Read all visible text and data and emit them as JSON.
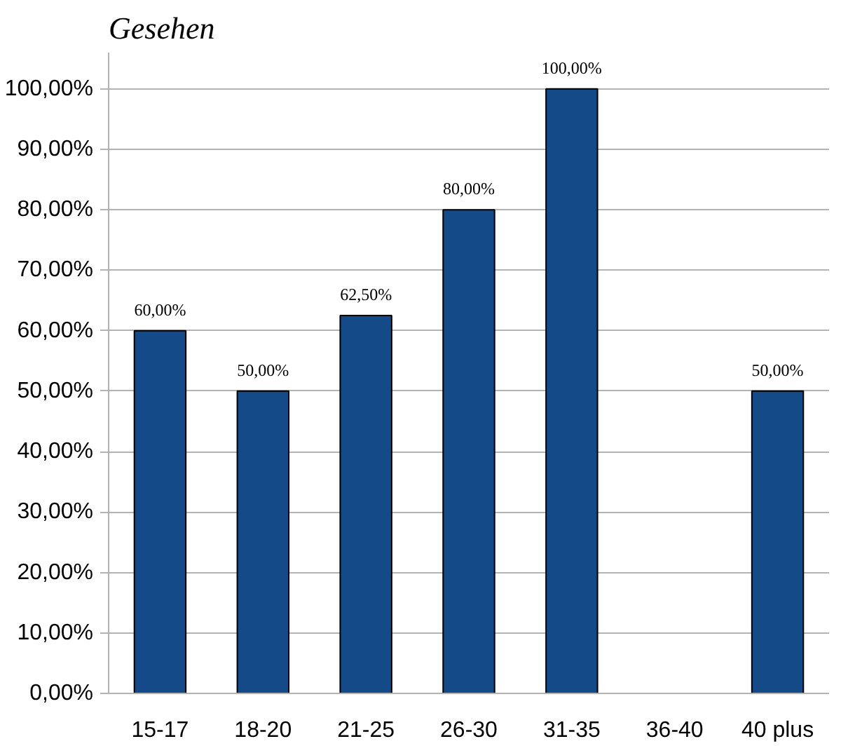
{
  "chart_data": {
    "type": "bar",
    "title": "Gesehen",
    "categories": [
      "15-17",
      "18-20",
      "21-25",
      "26-30",
      "31-35",
      "36-40",
      "40 plus"
    ],
    "values": [
      60,
      50,
      62.5,
      80,
      100,
      null,
      50
    ],
    "value_labels": [
      "60,00%",
      "50,00%",
      "62,50%",
      "80,00%",
      "100,00%",
      null,
      "50,00%"
    ],
    "color": "#134a87",
    "ylim": [
      0,
      100
    ],
    "yticks": [
      {
        "value": 0,
        "label": "0,00%"
      },
      {
        "value": 10,
        "label": "10,00%"
      },
      {
        "value": 20,
        "label": "20,00%"
      },
      {
        "value": 30,
        "label": "30,00%"
      },
      {
        "value": 40,
        "label": "40,00%"
      },
      {
        "value": 50,
        "label": "50,00%"
      },
      {
        "value": 60,
        "label": "60,00%"
      },
      {
        "value": 70,
        "label": "70,00%"
      },
      {
        "value": 80,
        "label": "80,00%"
      },
      {
        "value": 90,
        "label": "90,00%"
      },
      {
        "value": 100,
        "label": "100,00%"
      }
    ],
    "grid": "y"
  }
}
